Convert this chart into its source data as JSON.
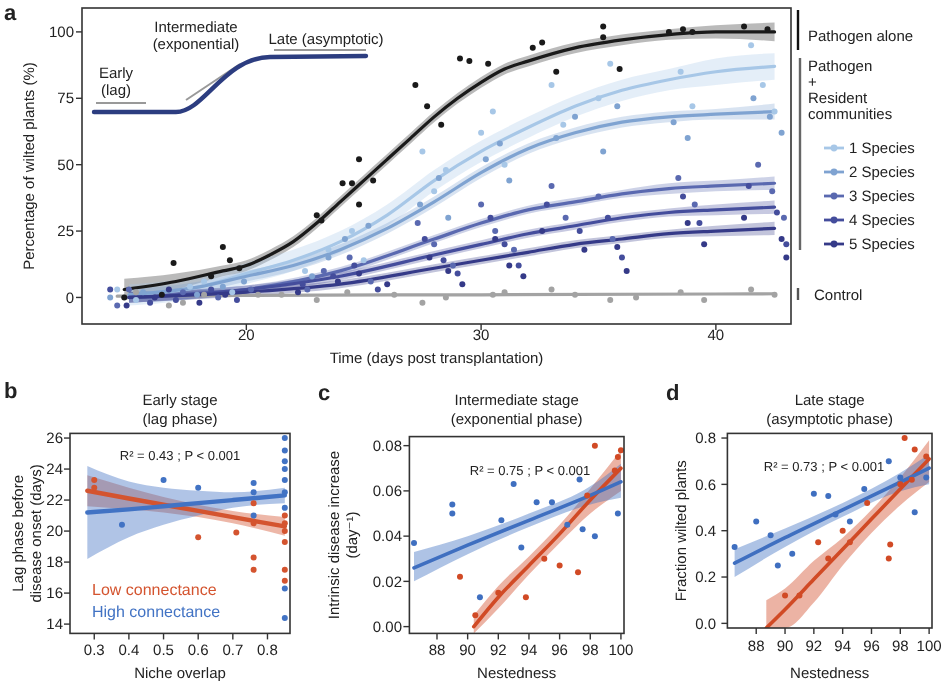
{
  "chart_data": [
    {
      "type": "scatter",
      "xlabel": "Time (days post transplantation)",
      "ylabel": "Percentage of wilted plants (%)",
      "legend_title": "Pathogen + Resident communities",
      "legend": "right",
      "annotations": [
        "a",
        "Early (lag)",
        "Intermediate (exponential)",
        "Late (asymptotic)",
        "Pathogen alone",
        "Control"
      ],
      "xlim": [
        13,
        43.2
      ],
      "ylim": [
        -10,
        109
      ],
      "xticks": [
        20,
        30,
        40
      ],
      "yticks": [
        0,
        25,
        50,
        75,
        100
      ],
      "series": [
        {
          "color": "#1a1a1a",
          "x": [
            14.8,
            16.4,
            16.9,
            18.5,
            19,
            19.3,
            19.7,
            23,
            23.2,
            24.1,
            24.5,
            24.8,
            24.8,
            25.4,
            27.2,
            27.7,
            28.3,
            29.1,
            29.5,
            30.3,
            32.2,
            32.6,
            33.2,
            35.2,
            35.2,
            35.9,
            38,
            38.6,
            39,
            41.2,
            42.2
          ],
          "values": [
            0,
            1,
            13,
            8,
            19,
            14,
            11,
            31,
            29,
            43,
            43,
            52,
            35,
            44,
            80,
            72,
            65,
            90,
            89,
            88,
            94,
            96,
            85,
            102,
            98,
            86,
            100,
            101,
            100,
            102,
            101
          ]
        },
        {
          "color": "#a7c7e7",
          "x": [
            14.5,
            15.3,
            17.6,
            18.2,
            19.4,
            22.5,
            23.5,
            24.5,
            25,
            27.5,
            28,
            28.5,
            30,
            30.5,
            31,
            33,
            33.5,
            35,
            35.5,
            38.5,
            39,
            41.5,
            42,
            42.5
          ],
          "values": [
            3,
            -1,
            4,
            6,
            2,
            10,
            18,
            25,
            14,
            55,
            40,
            48,
            62,
            70,
            50,
            80,
            65,
            75,
            88,
            85,
            72,
            95,
            80,
            70
          ]
        },
        {
          "color": "#7fa3d1",
          "x": [
            14.2,
            15.6,
            17.9,
            19,
            19.9,
            22.8,
            23.5,
            24.2,
            25.2,
            27.4,
            28.2,
            28.6,
            30.2,
            30.8,
            31.2,
            33.2,
            34,
            35.2,
            35.8,
            38.2,
            38.8,
            41.6,
            42.3,
            42.8
          ],
          "values": [
            0,
            2,
            1,
            4,
            6,
            8,
            15,
            22,
            27,
            35,
            45,
            30,
            52,
            58,
            44,
            60,
            68,
            55,
            72,
            66,
            60,
            75,
            68,
            62
          ]
        },
        {
          "color": "#5a69b0",
          "x": [
            14.5,
            15,
            17.3,
            18.8,
            20.2,
            22.6,
            23.3,
            24.4,
            25.3,
            27.3,
            28,
            28.8,
            30,
            30.6,
            31.4,
            33,
            33.6,
            35,
            35.6,
            38.4,
            39.1,
            41.8,
            42.4,
            42.9
          ],
          "values": [
            -3,
            3,
            2,
            0,
            3,
            3,
            10,
            15,
            6,
            28,
            20,
            12,
            35,
            25,
            18,
            42,
            30,
            38,
            22,
            45,
            35,
            50,
            40,
            30
          ]
        },
        {
          "color": "#444d9c",
          "x": [
            14.2,
            15.9,
            17,
            18.5,
            19.6,
            22.4,
            23.7,
            24.6,
            25.6,
            27.6,
            28.4,
            29,
            30.4,
            31,
            31.6,
            32.8,
            34.2,
            35.4,
            36,
            38.6,
            39.3,
            41.4,
            42.6,
            43
          ],
          "values": [
            3,
            -2,
            -1,
            3,
            -1,
            5,
            8,
            12,
            3,
            22,
            14,
            9,
            30,
            20,
            12,
            35,
            25,
            30,
            15,
            38,
            28,
            42,
            32,
            20
          ]
        },
        {
          "color": "#353a88",
          "x": [
            14.9,
            16.1,
            16.7,
            18,
            19.1,
            22.2,
            23.9,
            24.8,
            26,
            27.8,
            28.6,
            29.2,
            30.6,
            31.2,
            31.8,
            32.6,
            34.4,
            35.8,
            36.2,
            38.8,
            39.5,
            41.2,
            42.8,
            43
          ],
          "values": [
            -3,
            0,
            3,
            -2,
            1,
            2,
            6,
            9,
            5,
            15,
            10,
            5,
            22,
            12,
            8,
            25,
            18,
            19,
            10,
            28,
            20,
            30,
            22,
            15
          ]
        },
        {
          "color": "#a3a3a3",
          "x": [
            15.3,
            16.7,
            17.3,
            18.2,
            20.5,
            21.5,
            23,
            24.3,
            26.3,
            27.5,
            28.5,
            30.5,
            31,
            33,
            34,
            35.5,
            36.6,
            38.5,
            39.5,
            41.5,
            42.5
          ],
          "values": [
            2,
            -3,
            -2,
            1,
            1,
            1,
            -1,
            2,
            1,
            -2,
            0,
            1,
            2,
            3,
            1,
            -1,
            0,
            2,
            -1,
            3,
            1
          ]
        },
        {
          "type": "line",
          "color": "#a3a3a3",
          "x": [
            14.5,
            20,
            30,
            40,
            42.5
          ],
          "values": [
            0.5,
            0.8,
            1,
            1.3,
            1.4
          ]
        },
        {
          "type": "line",
          "color": "#1a1a1a",
          "x": [
            14.8,
            17,
            19,
            20,
            21,
            22,
            23,
            24,
            25,
            26,
            27,
            28,
            29,
            30,
            31,
            32,
            34,
            36,
            38,
            40,
            42.5
          ],
          "values": [
            3,
            6,
            10,
            12,
            16,
            21,
            28,
            36,
            44,
            52,
            60,
            68,
            75,
            81,
            86,
            89,
            94,
            97,
            99,
            100,
            100
          ],
          "lower": [
            -1,
            3,
            8,
            10,
            14,
            19,
            26,
            34,
            42,
            50,
            58,
            66,
            73,
            79,
            84,
            87,
            92,
            95,
            97,
            97.5,
            96.5
          ],
          "upper": [
            7,
            9,
            12,
            14,
            18,
            23,
            30,
            38,
            46,
            54,
            62,
            70,
            77,
            83,
            88,
            91,
            96,
            99,
            101,
            102.5,
            103.5
          ]
        },
        {
          "type": "line",
          "name": "1 Species",
          "color": "#a7c7e7",
          "x": [
            15,
            18,
            20,
            22,
            24,
            26,
            28,
            30,
            32,
            34,
            36,
            38,
            40,
            42.5
          ],
          "values": [
            1,
            4,
            9,
            14,
            21,
            31,
            44,
            55,
            64,
            72,
            78,
            82,
            85,
            87
          ],
          "lower": [
            -3,
            0,
            5,
            10,
            17,
            27,
            40,
            51,
            60,
            68,
            74,
            78,
            80,
            82
          ],
          "upper": [
            5,
            8,
            13,
            18,
            25,
            35,
            48,
            59,
            68,
            76,
            82,
            86,
            90,
            92
          ]
        },
        {
          "type": "line",
          "name": "2 Species",
          "color": "#7fa3d1",
          "x": [
            15,
            18,
            20,
            22,
            24,
            26,
            28,
            30,
            32,
            34,
            36,
            38,
            40,
            42.5
          ],
          "values": [
            1,
            4,
            8,
            12,
            18,
            26,
            36,
            47,
            56,
            62,
            66,
            68,
            69,
            70
          ],
          "lower": [
            -1,
            2,
            6,
            10,
            16,
            24,
            34,
            45,
            54,
            60,
            64,
            66,
            67,
            67
          ],
          "upper": [
            3,
            6,
            10,
            14,
            20,
            28,
            38,
            49,
            58,
            64,
            68,
            70,
            71,
            73
          ]
        },
        {
          "type": "line",
          "name": "3 Species",
          "color": "#5a69b0",
          "x": [
            15,
            20,
            24,
            28,
            30,
            32,
            34,
            36,
            38,
            40,
            42.5
          ],
          "values": [
            0,
            3,
            10,
            22,
            28,
            33,
            36,
            39,
            41,
            42,
            43
          ],
          "lower": [
            -2,
            1.5,
            8.5,
            20.5,
            26.5,
            31.5,
            34.5,
            37.5,
            39,
            40,
            40.5
          ],
          "upper": [
            2,
            4.5,
            11.5,
            23.5,
            29.5,
            34.5,
            37.5,
            40.5,
            43,
            44,
            45.5
          ]
        },
        {
          "type": "line",
          "name": "4 Species",
          "color": "#444d9c",
          "x": [
            15,
            20,
            24,
            28,
            30,
            32,
            34,
            36,
            38,
            40,
            42.5
          ],
          "values": [
            0,
            3,
            8,
            16,
            20,
            24,
            27,
            30,
            32,
            33,
            34
          ],
          "lower": [
            -2,
            1.5,
            6.5,
            14.5,
            18.5,
            22.5,
            25.5,
            28.5,
            30.5,
            31,
            31.5
          ],
          "upper": [
            2,
            4.5,
            9.5,
            17.5,
            21.5,
            25.5,
            28.5,
            31.5,
            33.5,
            35,
            36.5
          ]
        },
        {
          "type": "line",
          "name": "5 Species",
          "color": "#353a88",
          "x": [
            15,
            20,
            24,
            28,
            30,
            32,
            34,
            36,
            38,
            40,
            42.5
          ],
          "values": [
            0,
            2,
            5,
            11,
            14,
            17,
            20,
            22,
            24,
            25,
            26
          ],
          "lower": [
            -2,
            0.5,
            3.5,
            9.5,
            12.5,
            15.5,
            18.5,
            20.5,
            22.5,
            23,
            23.5
          ],
          "upper": [
            2,
            3.5,
            6.5,
            12.5,
            15.5,
            18.5,
            21.5,
            23.5,
            25.5,
            27,
            28.5
          ]
        }
      ]
    },
    {
      "type": "line",
      "title": "Early stage (lag phase)",
      "xlabel": "Niche overlap",
      "ylabel": "Lag phase before disease onset (days)",
      "annotations": [
        "b",
        "R² = 0.43 ; P < 0.001"
      ],
      "legend": "bottom left",
      "xlim": [
        0.23,
        0.865
      ],
      "ylim": [
        13.4,
        26.3
      ],
      "xticks": [
        0.3,
        0.4,
        0.5,
        0.6,
        0.7,
        0.8
      ],
      "yticks": [
        14,
        16,
        18,
        20,
        22,
        24,
        26
      ],
      "series": [
        {
          "type": "scatter",
          "color": "#d4542f",
          "x": [
            0.3,
            0.3,
            0.6,
            0.71,
            0.76,
            0.76,
            0.76,
            0.76,
            0.85,
            0.85,
            0.85,
            0.85,
            0.85,
            0.85
          ],
          "values": [
            22.8,
            23.3,
            19.6,
            19.9,
            21.8,
            20.5,
            18.3,
            17.5,
            21,
            20.5,
            20,
            19.3,
            17.5,
            16.8
          ]
        },
        {
          "type": "scatter",
          "color": "#4273c4",
          "x": [
            0.38,
            0.5,
            0.6,
            0.76,
            0.76,
            0.76,
            0.85,
            0.85,
            0.85,
            0.85,
            0.85,
            0.85,
            0.85,
            0.85,
            0.85
          ],
          "values": [
            20.4,
            23.3,
            22.8,
            23.1,
            22.5,
            21,
            26,
            25.2,
            24.5,
            24,
            23.3,
            22.5,
            21.5,
            16.3,
            14.4
          ]
        },
        {
          "name": "Low connectance",
          "color": "#d4542f",
          "x": [
            0.28,
            0.4,
            0.5,
            0.6,
            0.7,
            0.85
          ],
          "values": [
            22.6,
            22.1,
            21.7,
            21.3,
            20.9,
            20.3
          ],
          "lower": [
            21.6,
            21.4,
            21.2,
            20.9,
            20.5,
            19.7
          ],
          "upper": [
            23.6,
            22.8,
            22.2,
            21.7,
            21.3,
            20.9
          ]
        },
        {
          "name": "High connectance",
          "color": "#4273c4",
          "x": [
            0.28,
            0.4,
            0.5,
            0.6,
            0.7,
            0.85
          ],
          "values": [
            21.2,
            21.4,
            21.6,
            21.8,
            22,
            22.3
          ],
          "lower": [
            18.2,
            19.6,
            20.4,
            21,
            21.5,
            21.8
          ],
          "upper": [
            24.2,
            23.2,
            22.8,
            22.6,
            22.5,
            22.8
          ]
        }
      ]
    },
    {
      "type": "line",
      "title": "Intermediate stage (exponential phase)",
      "xlabel": "Nestedness",
      "ylabel": "Intrinsic disease increase (day⁻¹)",
      "annotations": [
        "c",
        "R² = 0.75 ; P < 0.001"
      ],
      "xlim": [
        86.2,
        100.2
      ],
      "ylim": [
        -0.003,
        0.084
      ],
      "xticks": [
        88,
        90,
        92,
        94,
        96,
        98,
        100
      ],
      "yticks": [
        {
          "value": 0,
          "label": "0.00"
        },
        0.02,
        0.04,
        0.06,
        0.08
      ],
      "series": [
        {
          "type": "scatter",
          "color": "#d14a25",
          "x": [
            89.5,
            90.5,
            92,
            93.8,
            95,
            96,
            97.2,
            97.8,
            98.3,
            99.6,
            99.8,
            100
          ],
          "values": [
            0.022,
            0.005,
            0.015,
            0.013,
            0.03,
            0.027,
            0.024,
            0.058,
            0.08,
            0.069,
            0.075,
            0.078
          ]
        },
        {
          "type": "scatter",
          "color": "#3f6fc0",
          "x": [
            86.5,
            89,
            89,
            90.8,
            92.2,
            93,
            93.5,
            94.5,
            95.5,
            96.5,
            97.3,
            97.5,
            98.3,
            99.8
          ],
          "values": [
            0.037,
            0.054,
            0.05,
            0.013,
            0.047,
            0.063,
            0.035,
            0.055,
            0.055,
            0.045,
            0.065,
            0.043,
            0.04,
            0.05
          ]
        },
        {
          "color": "#d14a25",
          "x": [
            90.4,
            92,
            94,
            96,
            98,
            100
          ],
          "values": [
            0,
            0.013,
            0.027,
            0.041,
            0.056,
            0.07
          ],
          "lower": [
            -0.003,
            0.008,
            0.023,
            0.037,
            0.05,
            0.06
          ],
          "upper": [
            0.005,
            0.018,
            0.031,
            0.045,
            0.061,
            0.078
          ]
        },
        {
          "color": "#3f6fc0",
          "x": [
            86.5,
            90,
            94,
            98,
            100
          ],
          "values": [
            0.026,
            0.036,
            0.047,
            0.058,
            0.064
          ],
          "lower": [
            0.02,
            0.032,
            0.044,
            0.054,
            0.057
          ],
          "upper": [
            0.033,
            0.04,
            0.05,
            0.062,
            0.072
          ]
        }
      ]
    },
    {
      "type": "line",
      "title": "Late stage (asymptotic phase)",
      "xlabel": "Nestedness",
      "ylabel": "Fraction wilted plants",
      "annotations": [
        "d",
        "R² = 0.73 ; P < 0.001"
      ],
      "xlim": [
        86,
        100.2
      ],
      "ylim": [
        -0.02,
        0.82
      ],
      "xticks": [
        88,
        90,
        92,
        94,
        96,
        98,
        100
      ],
      "yticks": [
        {
          "value": 0,
          "label": "0.0"
        },
        0.2,
        0.4,
        0.6,
        0.8
      ],
      "series": [
        {
          "type": "scatter",
          "color": "#d14a25",
          "x": [
            90,
            91,
            92.3,
            93,
            94,
            94.5,
            95.7,
            97.2,
            97.3,
            98,
            98.3,
            98.8,
            99,
            99.8
          ],
          "values": [
            0.12,
            0.12,
            0.35,
            0.28,
            0.4,
            0.35,
            0.52,
            0.28,
            0.34,
            0.6,
            0.8,
            0.62,
            0.75,
            0.72
          ]
        },
        {
          "type": "scatter",
          "color": "#3f6fc0",
          "x": [
            86.5,
            88,
            89,
            89.5,
            90.5,
            92,
            93,
            93.5,
            94.5,
            95.5,
            97.2,
            98,
            99,
            99.8
          ],
          "values": [
            0.33,
            0.44,
            0.38,
            0.25,
            0.3,
            0.56,
            0.55,
            0.47,
            0.44,
            0.58,
            0.7,
            0.63,
            0.48,
            0.63
          ]
        },
        {
          "color": "#d14a25",
          "x": [
            88.7,
            90,
            92,
            94,
            96,
            98,
            100
          ],
          "values": [
            -0.02,
            0.06,
            0.19,
            0.32,
            0.45,
            0.58,
            0.71
          ],
          "lower": [
            -0.02,
            -0.02,
            0.09,
            0.25,
            0.39,
            0.51,
            0.61
          ],
          "upper": [
            0.1,
            0.15,
            0.27,
            0.37,
            0.49,
            0.63,
            0.79
          ]
        },
        {
          "color": "#3f6fc0",
          "x": [
            86.5,
            90,
            94,
            98,
            100
          ],
          "values": [
            0.26,
            0.37,
            0.49,
            0.61,
            0.67
          ],
          "lower": [
            0.2,
            0.33,
            0.46,
            0.57,
            0.6
          ],
          "upper": [
            0.32,
            0.41,
            0.52,
            0.65,
            0.73
          ]
        }
      ]
    }
  ]
}
